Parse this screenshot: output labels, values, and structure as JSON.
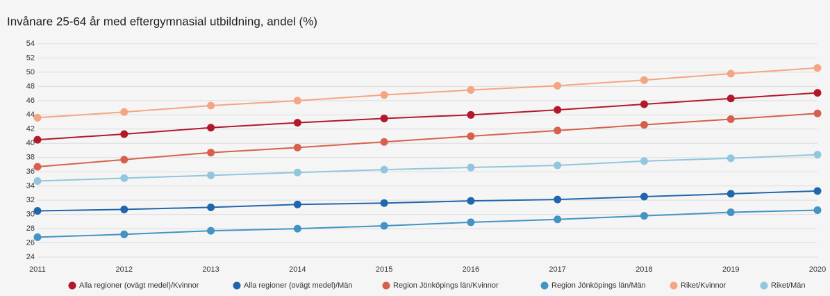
{
  "chart_data": {
    "type": "line",
    "title": "Invånare 25-64 år med eftergymnasial utbildning, andel (%)",
    "categories": [
      "2011",
      "2012",
      "2013",
      "2014",
      "2015",
      "2016",
      "2017",
      "2018",
      "2019",
      "2020"
    ],
    "series": [
      {
        "name": "Alla regioner (ovägt medel)/Kvinnor",
        "color": "#b2182b",
        "values": [
          40.5,
          41.3,
          42.2,
          42.9,
          43.5,
          44.0,
          44.7,
          45.5,
          46.3,
          47.1
        ]
      },
      {
        "name": "Alla regioner (ovägt medel)/Män",
        "color": "#2166ac",
        "values": [
          30.5,
          30.7,
          31.0,
          31.4,
          31.6,
          31.9,
          32.1,
          32.5,
          32.9,
          33.3
        ]
      },
      {
        "name": "Region Jönköpings län/Kvinnor",
        "color": "#d6604d",
        "values": [
          36.7,
          37.7,
          38.7,
          39.4,
          40.2,
          41.0,
          41.8,
          42.6,
          43.4,
          44.2
        ]
      },
      {
        "name": "Region Jönköpings län/Män",
        "color": "#4393c3",
        "values": [
          26.8,
          27.2,
          27.7,
          28.0,
          28.4,
          28.9,
          29.3,
          29.8,
          30.3,
          30.6
        ]
      },
      {
        "name": "Riket/Kvinnor",
        "color": "#f4a582",
        "values": [
          43.6,
          44.4,
          45.3,
          46.0,
          46.8,
          47.5,
          48.1,
          48.9,
          49.8,
          50.6
        ]
      },
      {
        "name": "Riket/Män",
        "color": "#92c5de",
        "values": [
          34.7,
          35.1,
          35.5,
          35.9,
          36.3,
          36.6,
          36.9,
          37.5,
          37.9,
          38.4
        ]
      }
    ],
    "ylim": [
      24,
      54
    ],
    "yticks": [
      24,
      26,
      28,
      30,
      32,
      34,
      36,
      38,
      40,
      42,
      44,
      46,
      48,
      50,
      52,
      54
    ],
    "grid": true,
    "legend": "bottom"
  }
}
